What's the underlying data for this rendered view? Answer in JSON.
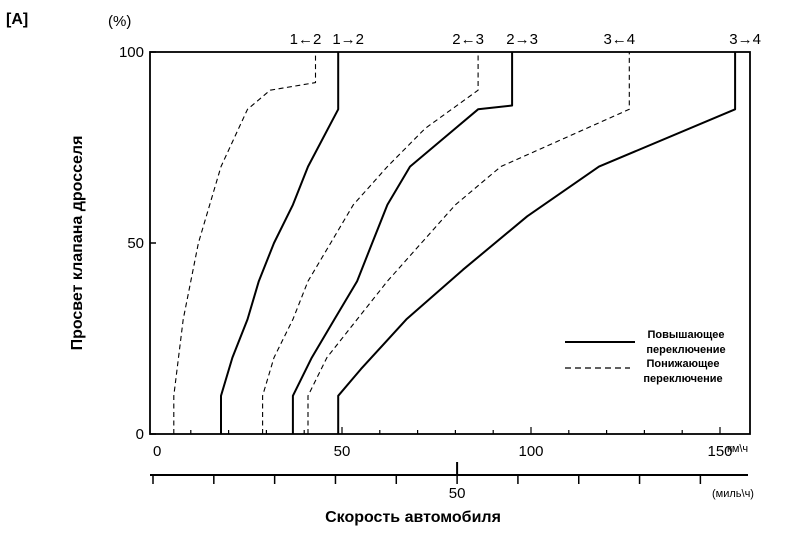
{
  "panel_label": "[A]",
  "chart_data": {
    "type": "line",
    "xlabel": "Скорость автомобиля",
    "ylabel": "Просвет клапана дросселя",
    "y_unit": "(%)",
    "x_unit_kmh": "км\\ч",
    "x_unit_mph": "(миль\\ч)",
    "xlim_kmh": [
      0,
      160
    ],
    "ylim": [
      0,
      100
    ],
    "x_ticks_kmh": [
      {
        "value": 0,
        "label": "0"
      },
      {
        "value": 50,
        "label": "50"
      },
      {
        "value": 100,
        "label": "100"
      },
      {
        "value": 150,
        "label": "150"
      }
    ],
    "x_ticks_mph": [
      {
        "value": 50,
        "label": "50"
      }
    ],
    "y_ticks": [
      {
        "value": 0,
        "label": "0"
      },
      {
        "value": 50,
        "label": "50"
      },
      {
        "value": 100,
        "label": "100"
      }
    ],
    "legend": {
      "placement": "lower-right",
      "upshift_line1": "Повышающее",
      "upshift_line2": "переключение",
      "downshift_line1": "Понижающее",
      "downshift_line2": "переключение"
    },
    "series": [
      {
        "label": "1←2",
        "style": "dashed",
        "points": [
          [
            5.5,
            0
          ],
          [
            5.5,
            10
          ],
          [
            8,
            30
          ],
          [
            12,
            50
          ],
          [
            15,
            60
          ],
          [
            18,
            70
          ],
          [
            25,
            85
          ],
          [
            31,
            90
          ],
          [
            43,
            92
          ],
          [
            43,
            100
          ]
        ]
      },
      {
        "label": "1→2",
        "style": "solid",
        "points": [
          [
            18,
            0
          ],
          [
            18,
            10
          ],
          [
            21,
            20
          ],
          [
            25,
            30
          ],
          [
            28,
            40
          ],
          [
            32,
            50
          ],
          [
            37,
            60
          ],
          [
            41,
            70
          ],
          [
            49,
            85
          ],
          [
            49,
            100
          ]
        ]
      },
      {
        "label": "2←3",
        "style": "dashed",
        "points": [
          [
            29,
            0
          ],
          [
            29,
            10
          ],
          [
            32,
            20
          ],
          [
            37,
            30
          ],
          [
            41,
            40
          ],
          [
            47,
            50
          ],
          [
            53,
            60
          ],
          [
            62,
            70
          ],
          [
            72,
            80
          ],
          [
            86,
            90
          ],
          [
            86,
            100
          ]
        ]
      },
      {
        "label": "2→3",
        "style": "solid",
        "points": [
          [
            37,
            0
          ],
          [
            37,
            10
          ],
          [
            42,
            20
          ],
          [
            48,
            30
          ],
          [
            54,
            40
          ],
          [
            58,
            50
          ],
          [
            62,
            60
          ],
          [
            68,
            70
          ],
          [
            86,
            85
          ],
          [
            95,
            86
          ],
          [
            95,
            100
          ]
        ]
      },
      {
        "label": "3←4",
        "style": "dashed",
        "points": [
          [
            41,
            0
          ],
          [
            41,
            10
          ],
          [
            46,
            20
          ],
          [
            54,
            30
          ],
          [
            62,
            40
          ],
          [
            71,
            50
          ],
          [
            80,
            60
          ],
          [
            92,
            70
          ],
          [
            126,
            85
          ],
          [
            126,
            100
          ]
        ]
      },
      {
        "label": "3→4",
        "style": "solid",
        "points": [
          [
            49,
            0
          ],
          [
            49,
            10
          ],
          [
            55,
            17
          ],
          [
            67,
            30
          ],
          [
            82,
            43
          ],
          [
            99,
            57
          ],
          [
            118,
            70
          ],
          [
            154,
            85
          ],
          [
            154,
            100
          ]
        ]
      }
    ]
  }
}
